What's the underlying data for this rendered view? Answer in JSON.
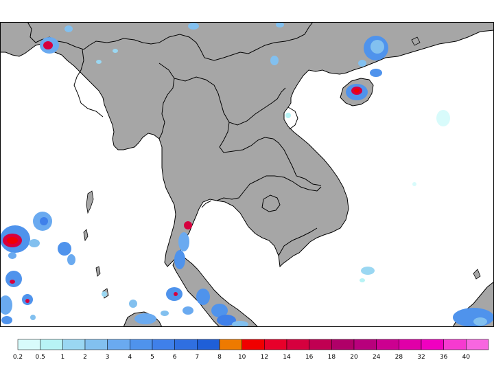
{
  "colors": {
    "ocean": "#ffffff",
    "land": "#a6a6a6",
    "border": "#000000"
  },
  "legend": {
    "bins": [
      {
        "label": "0.2",
        "color": "#d8fbfb"
      },
      {
        "label": "0.5",
        "color": "#b7f3f5"
      },
      {
        "label": "1",
        "color": "#9ad7f2"
      },
      {
        "label": "2",
        "color": "#82c0ef"
      },
      {
        "label": "3",
        "color": "#6aaaf0"
      },
      {
        "label": "4",
        "color": "#4f93ec"
      },
      {
        "label": "5",
        "color": "#3f80ea"
      },
      {
        "label": "6",
        "color": "#2f6fe1"
      },
      {
        "label": "7",
        "color": "#1f5fd8"
      },
      {
        "label": "8",
        "color": "#ee7a00"
      },
      {
        "label": "10",
        "color": "#f00000"
      },
      {
        "label": "12",
        "color": "#e8002a"
      },
      {
        "label": "14",
        "color": "#d6003e"
      },
      {
        "label": "16",
        "color": "#c00052"
      },
      {
        "label": "18",
        "color": "#b00068"
      },
      {
        "label": "20",
        "color": "#b8007c"
      },
      {
        "label": "24",
        "color": "#cc0090"
      },
      {
        "label": "28",
        "color": "#e000a8"
      },
      {
        "label": "32",
        "color": "#f000c0"
      },
      {
        "label": "36",
        "color": "#f63ad0"
      },
      {
        "label": "40",
        "color": "#f866e0"
      }
    ]
  }
}
